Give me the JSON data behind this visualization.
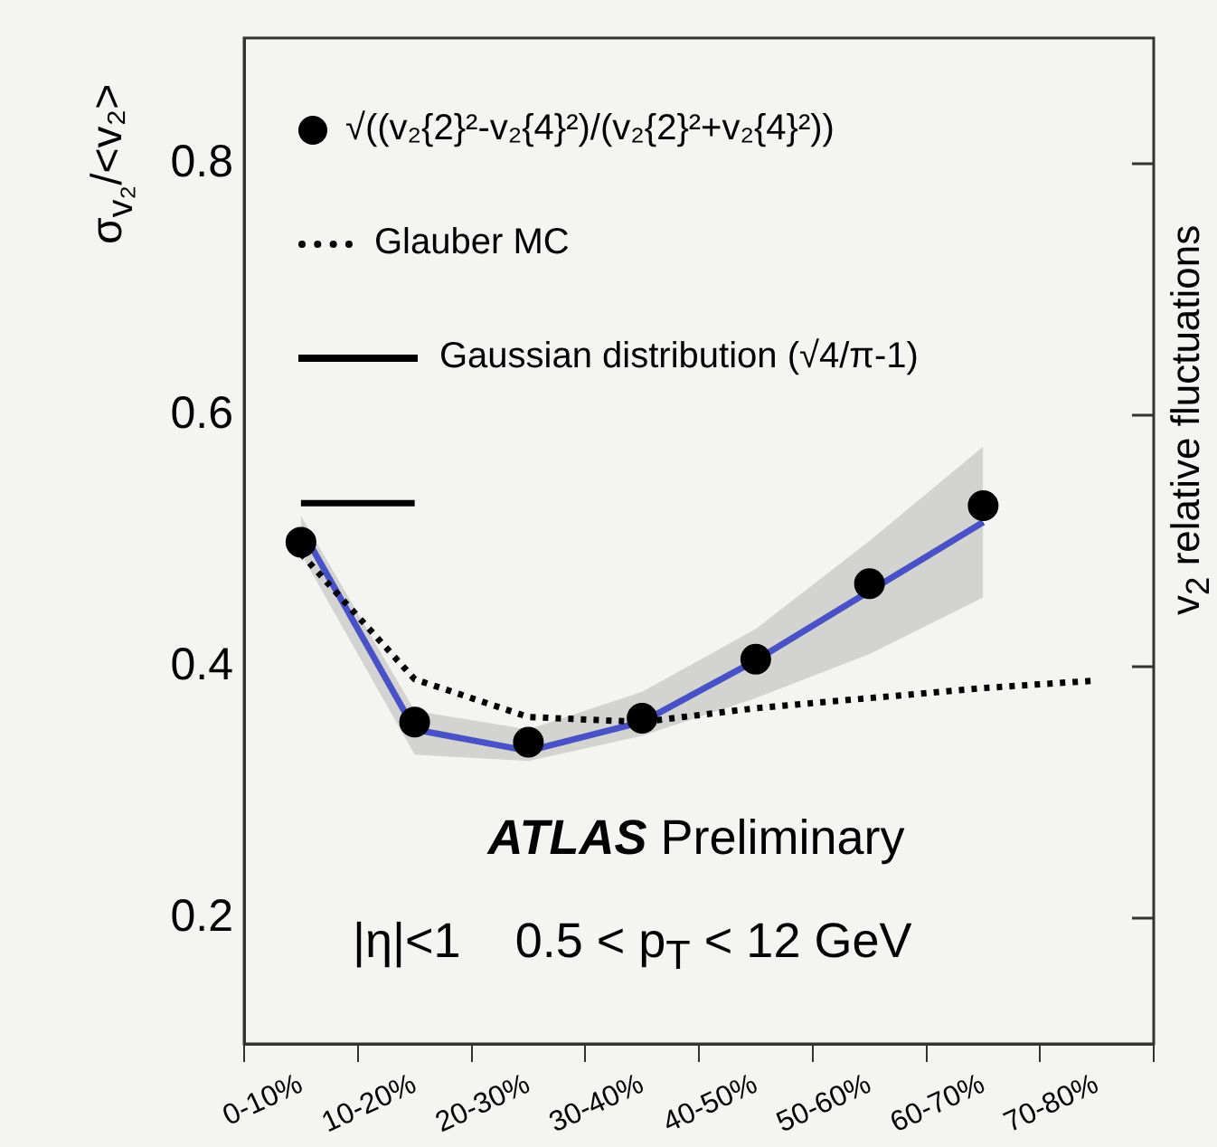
{
  "chart_data": {
    "type": "scatter",
    "ylabel": "σ$_{v₂}$/<v₂>",
    "y2label": "v$_{2}$ relative fluctuations",
    "categories": [
      "0-10%",
      "10-20%",
      "20-30%",
      "30-40%",
      "40-50%",
      "50-60%",
      "60-70%",
      "70-80%"
    ],
    "ylim": [
      0.1,
      0.9
    ],
    "yticks": [
      0.2,
      0.4,
      0.6,
      0.8
    ],
    "legend": "top left",
    "series": [
      {
        "name": "√((v₂{2}²-v₂{4}²)/(v₂{2}²+v₂{4}²))",
        "color": "#000000",
        "marker": "circle",
        "values": [
          0.499,
          0.356,
          0.34,
          0.359,
          0.406,
          0.466,
          0.528,
          null
        ]
      },
      {
        "type": "line",
        "name": "Glauber MC",
        "color": "#000000",
        "line_style": "dotted",
        "values": [
          0.49,
          0.39,
          0.36,
          0.356,
          0.367,
          0.375,
          0.383,
          0.389
        ]
      },
      {
        "type": "line",
        "name": "Gaussian distribution (√4/π-1)",
        "color": "#000000",
        "line_style": "solid",
        "values": [
          0.53,
          0.53,
          null,
          null,
          null,
          null,
          null,
          null
        ]
      },
      {
        "type": "line",
        "color": "#1f2fe0",
        "line_style": "solid",
        "values": [
          0.51,
          0.35,
          0.333,
          0.356,
          0.405,
          0.46,
          0.515,
          null
        ],
        "lower": [
          0.49,
          0.33,
          0.325,
          0.345,
          0.375,
          0.41,
          0.455,
          null
        ],
        "upper": [
          0.52,
          0.365,
          0.35,
          0.38,
          0.43,
          0.5,
          0.575,
          null
        ]
      }
    ],
    "annotations": [
      "ATLAS Preliminary",
      "|η|<1    0.5 < p$_{T}$ < 12 GeV"
    ]
  }
}
